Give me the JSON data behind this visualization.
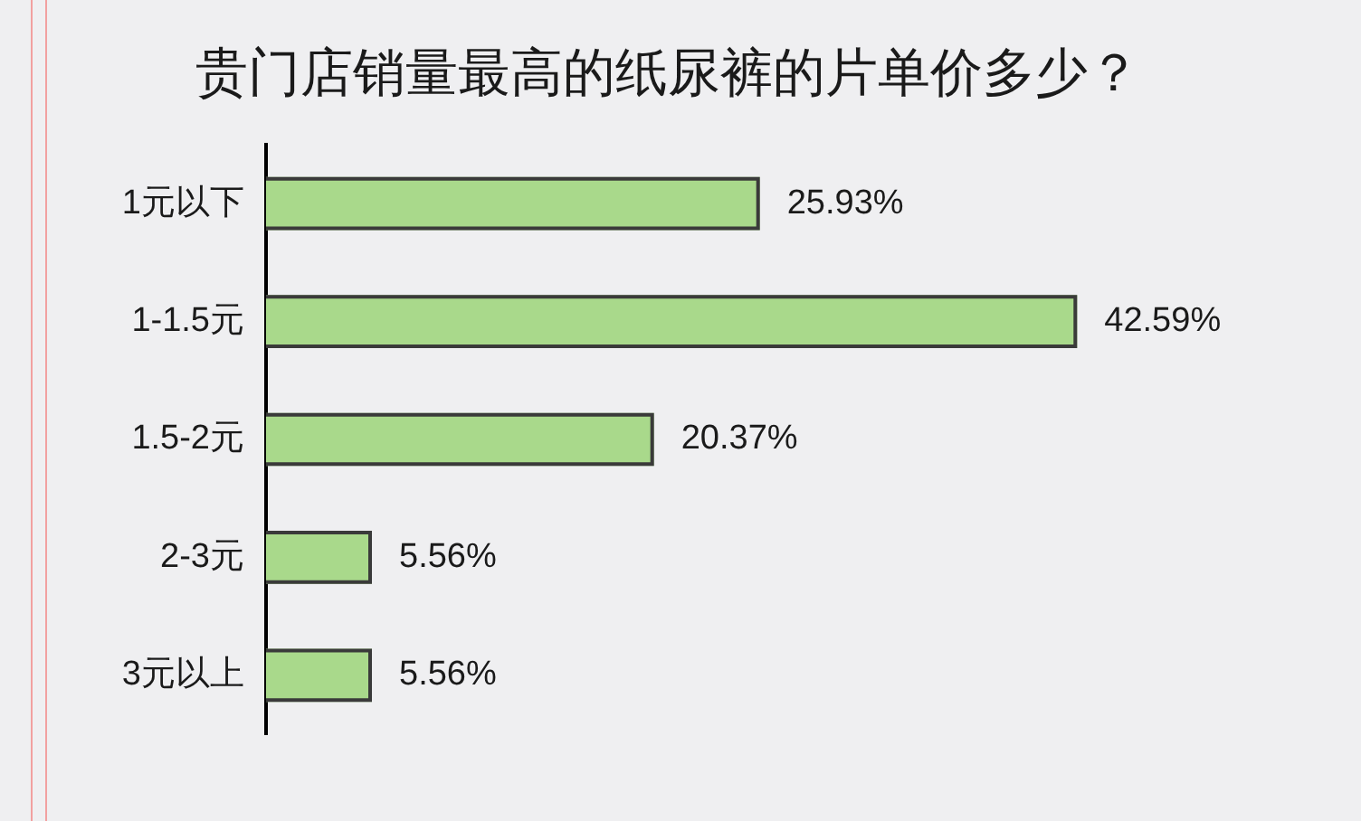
{
  "chart_data": {
    "type": "bar",
    "orientation": "horizontal",
    "title": "贵门店销量最高的纸尿裤的片单价多少？",
    "categories": [
      "1元以下",
      "1-1.5元",
      "1.5-2元",
      "2-3元",
      "3元以上"
    ],
    "values": [
      25.93,
      42.59,
      20.37,
      5.56,
      5.56
    ],
    "value_labels": [
      "25.93%",
      "42.59%",
      "20.37%",
      "5.56%",
      "5.56%"
    ],
    "color": "#a9d98b",
    "tick_labels": "y"
  }
}
